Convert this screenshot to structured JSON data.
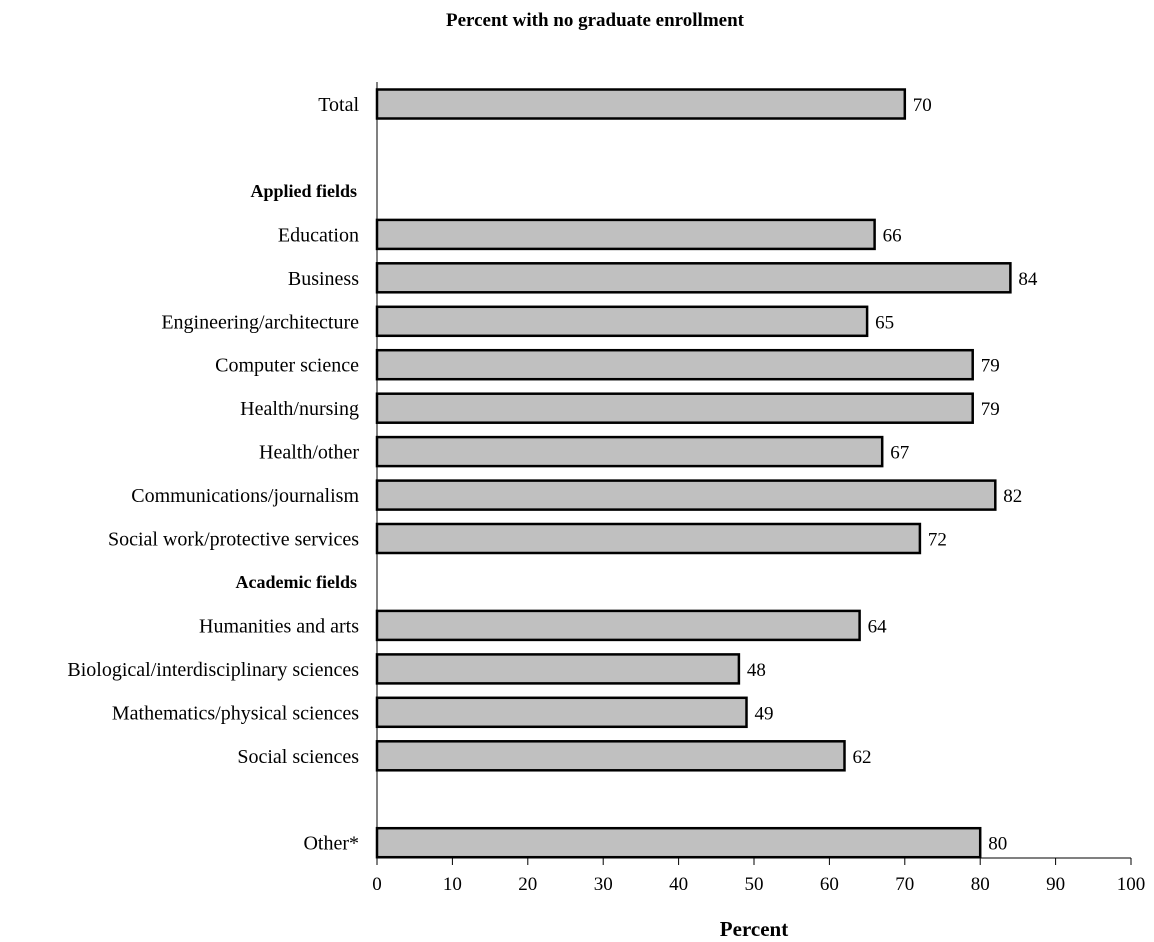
{
  "chart_data": {
    "type": "bar",
    "orientation": "horizontal",
    "title": "Percent with no graduate enrollment",
    "xlabel": "Percent",
    "xlim": [
      0,
      100
    ],
    "xticks": [
      0,
      10,
      20,
      30,
      40,
      50,
      60,
      70,
      80,
      90,
      100
    ],
    "grid": false,
    "bar_color": "#c0c0c0",
    "bar_edge_color": "#000000",
    "rows": [
      {
        "kind": "bar",
        "label": "Total",
        "value": 70
      },
      {
        "kind": "gap"
      },
      {
        "kind": "heading",
        "label": "Applied fields"
      },
      {
        "kind": "bar",
        "label": "Education",
        "value": 66
      },
      {
        "kind": "bar",
        "label": "Business",
        "value": 84
      },
      {
        "kind": "bar",
        "label": "Engineering/architecture",
        "value": 65
      },
      {
        "kind": "bar",
        "label": "Computer science",
        "value": 79
      },
      {
        "kind": "bar",
        "label": "Health/nursing",
        "value": 79
      },
      {
        "kind": "bar",
        "label": "Health/other",
        "value": 67
      },
      {
        "kind": "bar",
        "label": "Communications/journalism",
        "value": 82
      },
      {
        "kind": "bar",
        "label": "Social work/protective services",
        "value": 72
      },
      {
        "kind": "heading",
        "label": "Academic fields"
      },
      {
        "kind": "bar",
        "label": "Humanities and arts",
        "value": 64
      },
      {
        "kind": "bar",
        "label": "Biological/interdisciplinary sciences",
        "value": 48
      },
      {
        "kind": "bar",
        "label": "Mathematics/physical sciences",
        "value": 49
      },
      {
        "kind": "bar",
        "label": "Social sciences",
        "value": 62
      },
      {
        "kind": "gap"
      },
      {
        "kind": "bar",
        "label": "Other*",
        "value": 80
      }
    ]
  }
}
